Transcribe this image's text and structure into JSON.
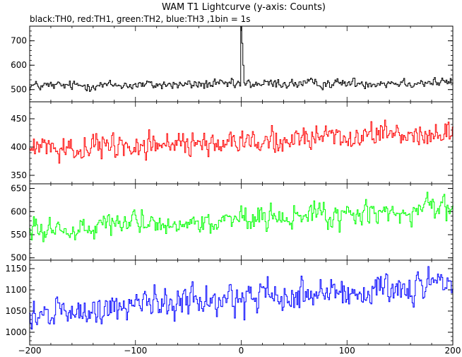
{
  "chart_data": {
    "type": "line",
    "title": "WAM T1 Lightcurve (y-axis: Counts)",
    "subtitle": "black:TH0, red:TH1, green:TH2, blue:TH3 ,1bin = 1s",
    "x_range": [
      -200,
      200
    ],
    "x_ticks": [
      -200,
      -100,
      0,
      100,
      200
    ],
    "x_tick_labels": [
      "−200",
      "−100",
      "0",
      "100",
      "200"
    ],
    "panels": [
      {
        "series_name": "TH0",
        "color": "#000000",
        "ylim": [
          450,
          760
        ],
        "y_ticks": [
          500,
          600,
          700
        ],
        "y_tick_labels": [
          "500",
          "600",
          "700"
        ],
        "baseline_start": 515,
        "baseline_end": 530,
        "noise": 22,
        "spikes": [
          {
            "x": 0,
            "peak": 760
          },
          {
            "x": 1,
            "peak": 690
          },
          {
            "x": 2,
            "peak": 600
          }
        ],
        "points": [
          [
            -200,
            515
          ],
          [
            -150,
            512
          ],
          [
            -100,
            518
          ],
          [
            -50,
            520
          ],
          [
            -1,
            525
          ],
          [
            0,
            760
          ],
          [
            1,
            690
          ],
          [
            2,
            600
          ],
          [
            3,
            535
          ],
          [
            50,
            525
          ],
          [
            100,
            528
          ],
          [
            150,
            530
          ],
          [
            200,
            532
          ]
        ]
      },
      {
        "series_name": "TH1",
        "color": "#ff0000",
        "ylim": [
          335,
          480
        ],
        "y_ticks": [
          350,
          400,
          450
        ],
        "y_tick_labels": [
          "350",
          "400",
          "450"
        ],
        "baseline_start": 395,
        "baseline_end": 425,
        "noise": 22,
        "spikes": [],
        "points": [
          [
            -200,
            395
          ],
          [
            -100,
            402
          ],
          [
            0,
            410
          ],
          [
            100,
            418
          ],
          [
            200,
            425
          ]
        ]
      },
      {
        "series_name": "TH2",
        "color": "#00ff00",
        "ylim": [
          495,
          660
        ],
        "y_ticks": [
          500,
          550,
          600,
          650
        ],
        "y_tick_labels": [
          "500",
          "550",
          "600",
          "650"
        ],
        "baseline_start": 560,
        "baseline_end": 605,
        "noise": 28,
        "spikes": [],
        "points": [
          [
            -200,
            560
          ],
          [
            -100,
            568
          ],
          [
            0,
            578
          ],
          [
            100,
            592
          ],
          [
            200,
            605
          ]
        ]
      },
      {
        "series_name": "TH3",
        "color": "#0000ff",
        "ylim": [
          970,
          1170
        ],
        "y_ticks": [
          1000,
          1050,
          1100,
          1150
        ],
        "y_tick_labels": [
          "1000",
          "1050",
          "1100",
          "1150"
        ],
        "baseline_start": 1040,
        "baseline_end": 1115,
        "noise": 40,
        "spikes": [],
        "points": [
          [
            -200,
            1040
          ],
          [
            -100,
            1058
          ],
          [
            0,
            1078
          ],
          [
            100,
            1095
          ],
          [
            200,
            1115
          ]
        ]
      }
    ],
    "grid": false,
    "legend": "none"
  }
}
